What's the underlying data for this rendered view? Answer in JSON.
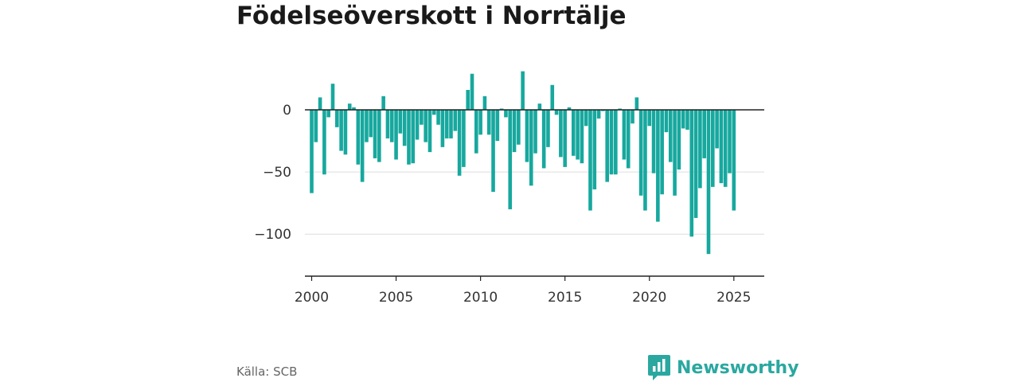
{
  "title": "Födelseöverskott i Norrtälje",
  "source": "Källa: SCB",
  "brand": {
    "name": "Newsworthy",
    "icon": "newsworthy-logo-icon",
    "color": "#2aa8a0"
  },
  "colors": {
    "bar": "#17a89e",
    "axis": "#222222",
    "grid": "#dddddd"
  },
  "chart_data": {
    "type": "bar",
    "title": "Födelseöverskott i Norrtälje",
    "xlabel": "",
    "ylabel": "",
    "grid": true,
    "legend": "none",
    "start_year": 2000,
    "step": 0.25,
    "xlim": [
      1999.6,
      2026.8
    ],
    "ylim": [
      -135,
      35
    ],
    "x_ticks": [
      {
        "label": "2000",
        "value": 2000
      },
      {
        "label": "2005",
        "value": 2005
      },
      {
        "label": "2010",
        "value": 2010
      },
      {
        "label": "2015",
        "value": 2015
      },
      {
        "label": "2020",
        "value": 2020
      },
      {
        "label": "2025",
        "value": 2025
      }
    ],
    "y_ticks": [
      {
        "label": "0",
        "value": 0
      },
      {
        "label": "−50",
        "value": -50
      },
      {
        "label": "−100",
        "value": -100
      }
    ],
    "values": [
      -67,
      -26,
      10,
      -52,
      -6,
      21,
      -14,
      -33,
      -36,
      5,
      2,
      -44,
      -58,
      -26,
      -22,
      -39,
      -42,
      11,
      -23,
      -26,
      -40,
      -19,
      -29,
      -44,
      -43,
      -24,
      -12,
      -26,
      -34,
      -4,
      -12,
      -30,
      -23,
      -23,
      -17,
      -53,
      -46,
      16,
      29,
      -35,
      -20,
      11,
      -20,
      -66,
      -25,
      1,
      -6,
      -80,
      -34,
      -28,
      31,
      -42,
      -61,
      -35,
      5,
      -47,
      -30,
      20,
      -4,
      -38,
      -46,
      2,
      -37,
      -40,
      -43,
      -13,
      -81,
      -64,
      -7,
      -1,
      -58,
      -52,
      -52,
      1,
      -40,
      -47,
      -11,
      10,
      -69,
      -81,
      -13,
      -51,
      -90,
      -68,
      -18,
      -42,
      -69,
      -48,
      -15,
      -16,
      -102,
      -87,
      -63,
      -39,
      -116,
      -62,
      -31,
      -59,
      -62,
      -51,
      -81
    ]
  }
}
